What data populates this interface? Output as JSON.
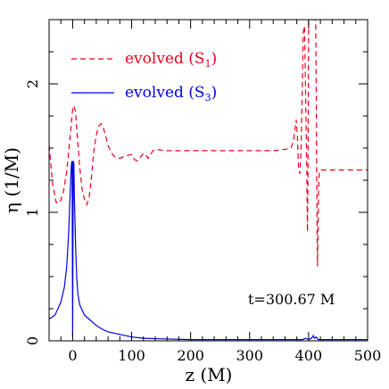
{
  "chart_data": {
    "type": "line",
    "xlabel": "z (M)",
    "ylabel": "η (1/M)",
    "xlim": [
      -40,
      500
    ],
    "ylim": [
      0,
      2.5
    ],
    "x_ticks": [
      0,
      100,
      200,
      300,
      400,
      500
    ],
    "x_tick_labels": [
      "0",
      "100",
      "200",
      "300",
      "400",
      "500"
    ],
    "y_ticks": [
      0,
      1,
      2
    ],
    "y_tick_labels": [
      "0",
      "1",
      "2"
    ],
    "annotation": "t=300.67  M",
    "legend_placement": "top-left",
    "series": [
      {
        "name": "evolved (S1)",
        "legend_label": "evolved  (S",
        "legend_sub": "1",
        "legend_close": ")",
        "color": "#e8001c",
        "style": "dashed",
        "x": [
          -40,
          -34,
          -28,
          -22,
          -16,
          -10,
          -5,
          -2,
          0,
          2,
          5,
          8,
          12,
          16,
          20,
          24,
          28,
          32,
          36,
          40,
          44,
          48,
          52,
          56,
          60,
          66,
          72,
          80,
          90,
          100,
          105,
          110,
          115,
          120,
          125,
          128,
          132,
          136,
          140,
          160,
          200,
          250,
          300,
          340,
          360,
          370,
          374,
          377,
          379,
          381,
          383,
          385,
          387,
          389,
          391,
          393,
          395,
          397,
          398,
          399,
          400,
          401,
          402,
          403,
          404,
          406,
          408,
          410,
          411,
          412,
          413,
          414,
          415,
          416,
          417,
          418,
          420,
          425,
          440,
          470,
          500
        ],
        "y": [
          1.52,
          1.22,
          1.08,
          1.07,
          1.15,
          1.32,
          1.55,
          1.7,
          1.8,
          1.83,
          1.78,
          1.58,
          1.35,
          1.18,
          1.1,
          1.06,
          1.12,
          1.28,
          1.48,
          1.6,
          1.67,
          1.69,
          1.66,
          1.59,
          1.52,
          1.46,
          1.43,
          1.42,
          1.44,
          1.45,
          1.41,
          1.4,
          1.43,
          1.46,
          1.44,
          1.42,
          1.45,
          1.48,
          1.49,
          1.48,
          1.48,
          1.48,
          1.48,
          1.48,
          1.49,
          1.5,
          1.55,
          1.65,
          1.72,
          1.6,
          1.35,
          1.3,
          1.45,
          1.9,
          2.4,
          2.45,
          1.9,
          1.3,
          0.85,
          1.3,
          2.5,
          2.5,
          2.5,
          2.5,
          2.5,
          2.5,
          2.5,
          2.5,
          2.5,
          2.5,
          1.9,
          1.1,
          0.58,
          0.85,
          1.2,
          1.3,
          1.33,
          1.33,
          1.33,
          1.33,
          1.33
        ]
      },
      {
        "name": "evolved (S3)",
        "legend_label": "evolved  (S",
        "legend_sub": "3",
        "legend_close": ")",
        "color": "#0000e0",
        "style": "solid",
        "x": [
          -40,
          -30,
          -20,
          -14,
          -10,
          -7,
          -5,
          -3,
          -2,
          -1,
          0,
          1,
          2,
          3,
          5,
          7,
          9,
          12,
          16,
          20,
          30,
          40,
          50,
          60,
          80,
          100,
          120,
          150,
          200,
          250,
          300,
          350,
          390,
          395,
          400,
          405,
          408,
          410,
          413,
          416,
          420,
          440,
          470,
          500
        ],
        "y": [
          0.17,
          0.2,
          0.3,
          0.42,
          0.58,
          0.82,
          1.05,
          1.3,
          1.38,
          1.4,
          0.03,
          1.4,
          1.38,
          1.1,
          0.72,
          0.48,
          0.36,
          0.28,
          0.24,
          0.2,
          0.16,
          0.12,
          0.09,
          0.07,
          0.05,
          0.03,
          0.02,
          0.015,
          0.01,
          0.01,
          0.01,
          0.01,
          0.01,
          0.02,
          0.01,
          0.02,
          0.04,
          0.02,
          0.03,
          0.01,
          0.01,
          0.01,
          0.01,
          0.01
        ]
      }
    ]
  }
}
